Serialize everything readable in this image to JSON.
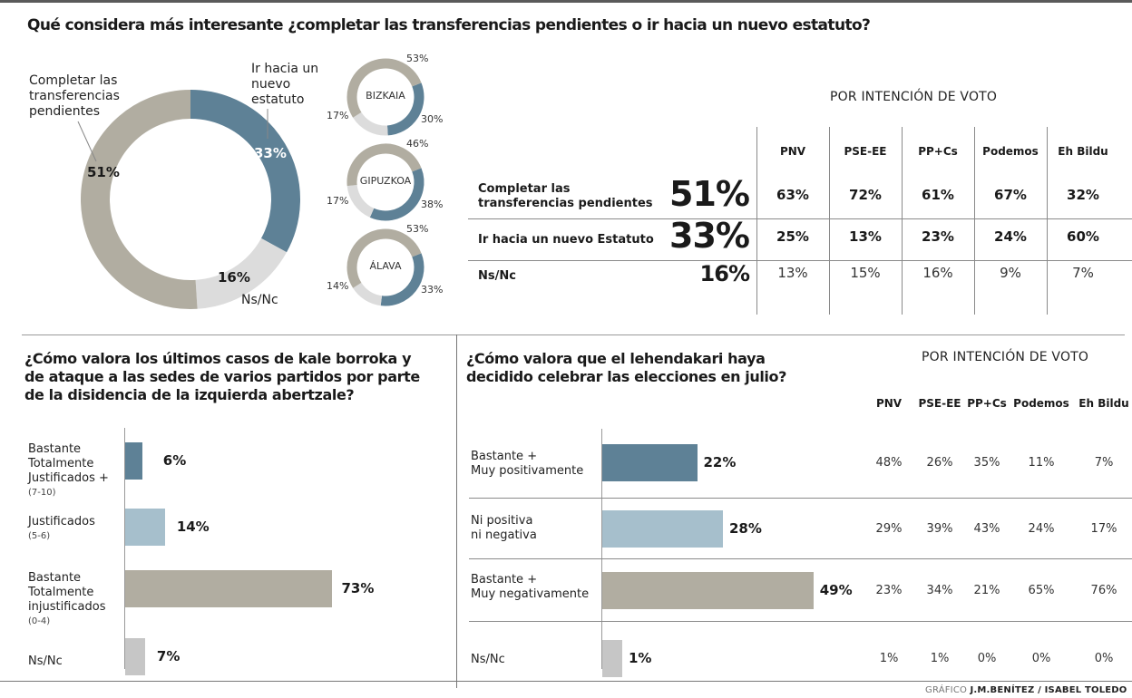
{
  "colors": {
    "gray": "#b1ada1",
    "blue": "#5e8196",
    "lightgray": "#dcdcdc",
    "lightblue": "#a6bfcc",
    "nsnc_bar": "#c6c6c6",
    "line": "#8a8a8a"
  },
  "title": "Qué considera más interesante ¿completar las transferencias pendientes o ir hacia un nuevo estatuto?",
  "chart_data": [
    {
      "type": "pie",
      "name": "main-donut",
      "title": "Qué considera más interesante ¿completar las transferencias pendientes o ir hacia un nuevo estatuto?",
      "slices": [
        {
          "label": "Ir hacia un nuevo estatuto",
          "value": 33,
          "display": "33%"
        },
        {
          "label": "Ns/Nc",
          "value": 16,
          "display": "16%"
        },
        {
          "label": "Completar las transferencias pendientes",
          "value": 51,
          "display": "51%"
        }
      ],
      "labels": {
        "completar": "Completar las transferencias pendientes",
        "ir": "Ir hacia un nuevo estatuto",
        "nsnc": "Ns/Nc"
      }
    },
    {
      "type": "pie",
      "name": "province-donuts",
      "provinces": [
        {
          "name": "BIZKAIA",
          "completar": 53,
          "ir": 30,
          "nsnc": 17,
          "d_completar": "53%",
          "d_ir": "30%",
          "d_nsnc": "17%"
        },
        {
          "name": "GIPUZKOA",
          "completar": 46,
          "ir": 38,
          "nsnc": 17,
          "d_completar": "46%",
          "d_ir": "38%",
          "d_nsnc": "17%"
        },
        {
          "name": "ÁLAVA",
          "completar": 53,
          "ir": 33,
          "nsnc": 14,
          "d_completar": "53%",
          "d_ir": "33%",
          "d_nsnc": "14%"
        }
      ]
    },
    {
      "type": "table",
      "name": "vote-table-1",
      "header": "POR INTENCIÓN DE VOTO",
      "columns": [
        "PNV",
        "PSE-EE",
        "PP+Cs",
        "Podemos",
        "Eh Bildu"
      ],
      "rows": [
        {
          "label": "Completar las transferencias pendientes",
          "label_l1": "Completar las",
          "label_l2": "transferencias pendientes",
          "total": "51%",
          "values": [
            "63%",
            "72%",
            "61%",
            "67%",
            "32%"
          ]
        },
        {
          "label": "Ir hacia un nuevo Estatuto",
          "total": "33%",
          "values": [
            "25%",
            "13%",
            "23%",
            "24%",
            "60%"
          ]
        },
        {
          "label": "Ns/Nc",
          "total": "16%",
          "values": [
            "13%",
            "15%",
            "16%",
            "9%",
            "7%"
          ]
        }
      ]
    },
    {
      "type": "bar",
      "name": "kale-borroka-bars",
      "title": "¿Cómo valora los últimos casos de kale borroka y de ataque a las sedes de varios partidos por parte de la disidencia de la izquierda abertzale?",
      "title_lines": [
        "¿Cómo valora los últimos casos de kale borroka y",
        "de ataque a las sedes de varios partidos por parte",
        "de la disidencia de la izquierda abertzale?"
      ],
      "categories": [
        {
          "lines": [
            "Bastante",
            "Totalmente",
            "Justificados +"
          ],
          "sub": "(7-10)",
          "value": 6,
          "display": "6%",
          "color": "#5e8196"
        },
        {
          "lines": [
            "Justificados"
          ],
          "sub": "(5-6)",
          "value": 14,
          "display": "14%",
          "color": "#a6bfcc"
        },
        {
          "lines": [
            "Bastante",
            "Totalmente",
            "injustificados"
          ],
          "sub": "(0-4)",
          "value": 73,
          "display": "73%",
          "color": "#b1ada1"
        },
        {
          "lines": [
            "Ns/Nc"
          ],
          "sub": "",
          "value": 7,
          "display": "7%",
          "color": "#c6c6c6"
        }
      ]
    },
    {
      "type": "bar",
      "name": "elecciones-julio-bars",
      "title": "¿Cómo valora que el lehendakari haya decidido celebrar las elecciones en julio?",
      "title_lines": [
        "¿Cómo valora que el lehendakari haya",
        "decidido celebrar las elecciones en julio?"
      ],
      "header": "POR INTENCIÓN DE VOTO",
      "columns": [
        "PNV",
        "PSE-EE",
        "PP+Cs",
        "Podemos",
        "Eh Bildu"
      ],
      "categories": [
        {
          "lines": [
            "Bastante +",
            "Muy positivamente"
          ],
          "value": 22,
          "display": "22%",
          "color": "#5e8196",
          "by_vote": [
            "48%",
            "26%",
            "35%",
            "11%",
            "7%"
          ]
        },
        {
          "lines": [
            "Ni positiva",
            "ni negativa"
          ],
          "value": 28,
          "display": "28%",
          "color": "#a6bfcc",
          "by_vote": [
            "29%",
            "39%",
            "43%",
            "24%",
            "17%"
          ]
        },
        {
          "lines": [
            "Bastante +",
            "Muy negativamente"
          ],
          "value": 49,
          "display": "49%",
          "color": "#b1ada1",
          "by_vote": [
            "23%",
            "34%",
            "21%",
            "65%",
            "76%"
          ]
        },
        {
          "lines": [
            "Ns/Nc"
          ],
          "value": 1,
          "display": "1%",
          "color": "#c6c6c6",
          "by_vote": [
            "1%",
            "1%",
            "0%",
            "0%",
            "0%"
          ]
        }
      ]
    }
  ],
  "credit": {
    "prefix": "GRÁFICO",
    "authors": "J.M.BENÍTEZ / ISABEL TOLEDO"
  }
}
